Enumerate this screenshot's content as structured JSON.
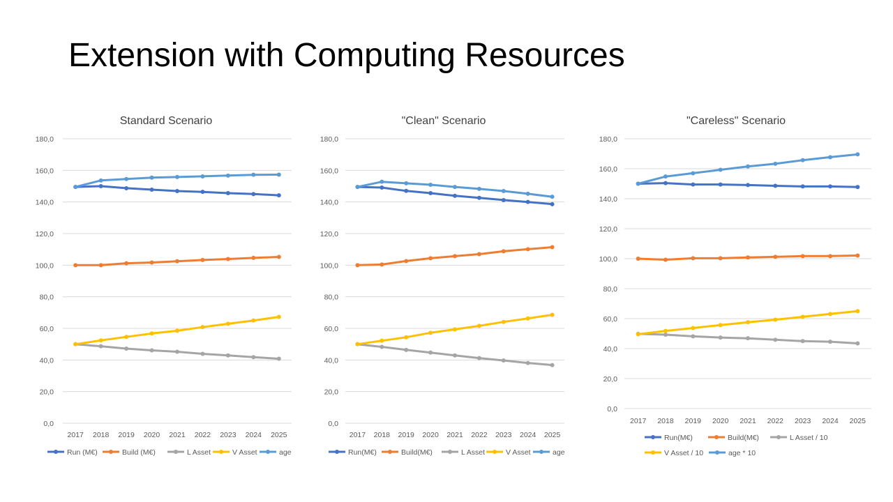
{
  "page": {
    "title": "Extension with Computing Resources"
  },
  "colors": {
    "run": "#4472c4",
    "build": "#ed7d31",
    "l_asset": "#a5a5a5",
    "v_asset": "#ffc000",
    "age": "#5b9bd5"
  },
  "chart_data": [
    {
      "type": "line",
      "title": "Standard Scenario",
      "categories": [
        "2017",
        "2018",
        "2019",
        "2020",
        "2021",
        "2022",
        "2023",
        "2024",
        "2025"
      ],
      "ylim": [
        0,
        180
      ],
      "yticks": [
        "0,0",
        "20,0",
        "40,0",
        "60,0",
        "80,0",
        "100,0",
        "120,0",
        "140,0",
        "160,0",
        "180,0"
      ],
      "grid": true,
      "legend": "bottom",
      "series": [
        {
          "name": "Run (M€)",
          "color": "#4472c4",
          "values": [
            149.5,
            150.0,
            148.7,
            147.8,
            146.9,
            146.4,
            145.6,
            145.0,
            144.2
          ]
        },
        {
          "name": "Build (M€)",
          "color": "#ed7d31",
          "values": [
            100.0,
            100.0,
            101.2,
            101.7,
            102.5,
            103.3,
            103.9,
            104.6,
            105.2
          ]
        },
        {
          "name": "L Asset",
          "color": "#a5a5a5",
          "values": [
            50.0,
            48.7,
            47.2,
            46.1,
            45.2,
            43.9,
            42.9,
            41.8,
            40.8
          ]
        },
        {
          "name": "V Asset",
          "color": "#ffc000",
          "values": [
            50.0,
            52.4,
            54.6,
            56.8,
            58.5,
            60.8,
            62.9,
            65.0,
            67.3
          ]
        },
        {
          "name": "age",
          "color": "#5b9bd5",
          "values": [
            149.5,
            153.6,
            154.5,
            155.4,
            155.8,
            156.2,
            156.7,
            157.2,
            157.3
          ]
        }
      ]
    },
    {
      "type": "line",
      "title": "\"Clean\" Scenario",
      "categories": [
        "2017",
        "2018",
        "2019",
        "2020",
        "2021",
        "2022",
        "2023",
        "2024",
        "2025"
      ],
      "ylim": [
        0,
        180
      ],
      "yticks": [
        "0,0",
        "20,0",
        "40,0",
        "60,0",
        "80,0",
        "100,0",
        "120,0",
        "140,0",
        "160,0",
        "180,0"
      ],
      "grid": true,
      "legend": "bottom",
      "series": [
        {
          "name": "Run(M€)",
          "color": "#4472c4",
          "values": [
            149.5,
            149.1,
            147.0,
            145.6,
            143.9,
            142.6,
            141.2,
            140.0,
            138.6
          ]
        },
        {
          "name": "Build(M€)",
          "color": "#ed7d31",
          "values": [
            100.0,
            100.4,
            102.6,
            104.4,
            105.7,
            107.0,
            108.8,
            110.1,
            111.4
          ]
        },
        {
          "name": "L Asset",
          "color": "#a5a5a5",
          "values": [
            50.0,
            48.3,
            46.4,
            44.7,
            42.9,
            41.2,
            39.7,
            38.1,
            36.8
          ]
        },
        {
          "name": "V Asset",
          "color": "#ffc000",
          "values": [
            50.0,
            52.2,
            54.4,
            57.2,
            59.4,
            61.6,
            64.1,
            66.3,
            68.6
          ]
        },
        {
          "name": "age",
          "color": "#5b9bd5",
          "values": [
            149.5,
            152.8,
            151.8,
            150.9,
            149.5,
            148.3,
            146.9,
            145.2,
            143.3
          ]
        }
      ]
    },
    {
      "type": "line",
      "title": "\"Careless\" Scenario",
      "categories": [
        "2017",
        "2018",
        "2019",
        "2020",
        "2021",
        "2022",
        "2023",
        "2024",
        "2025"
      ],
      "ylim": [
        0,
        180
      ],
      "yticks": [
        "0,0",
        "20,0",
        "40,0",
        "60,0",
        "80,0",
        "100,0",
        "120,0",
        "140,0",
        "160,0",
        "180,0"
      ],
      "grid": true,
      "legend": "bottom",
      "series": [
        {
          "name": "Run(M€)",
          "color": "#4472c4",
          "values": [
            150.0,
            150.4,
            149.5,
            149.5,
            149.1,
            148.6,
            148.2,
            148.2,
            147.8
          ]
        },
        {
          "name": "Build(M€)",
          "color": "#ed7d31",
          "values": [
            100.0,
            99.3,
            100.3,
            100.3,
            100.8,
            101.2,
            101.7,
            101.7,
            102.1
          ]
        },
        {
          "name": "L Asset / 10",
          "color": "#a5a5a5",
          "values": [
            49.8,
            49.3,
            48.2,
            47.4,
            46.9,
            45.9,
            45.0,
            44.6,
            43.5
          ]
        },
        {
          "name": "V Asset / 10",
          "color": "#ffc000",
          "values": [
            49.6,
            51.8,
            53.7,
            55.7,
            57.6,
            59.3,
            61.2,
            63.1,
            65.0
          ]
        },
        {
          "name": "age * 10",
          "color": "#5b9bd5",
          "values": [
            150.0,
            154.8,
            157.0,
            159.3,
            161.5,
            163.3,
            165.7,
            167.7,
            169.6
          ]
        }
      ]
    }
  ]
}
